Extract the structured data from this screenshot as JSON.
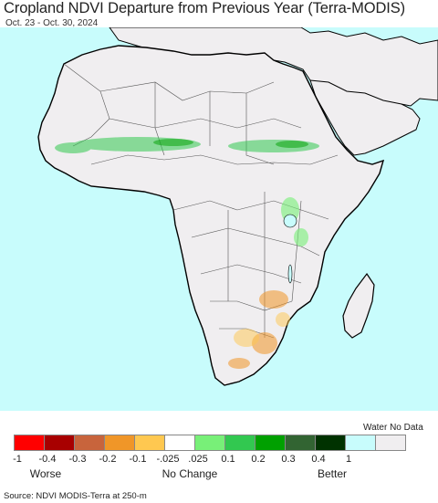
{
  "title": "Cropland NDVI Departure from Previous Year (Terra-MODIS)",
  "subtitle": "Oct. 23 - Oct. 30, 2024",
  "colors": {
    "ocean": "#c8fcfc",
    "land": "#f0eef0",
    "border": "#333333",
    "coast": "#000000"
  },
  "legend": {
    "colors": [
      "#ff0000",
      "#a80000",
      "#c8643c",
      "#f09628",
      "#ffc850",
      "#ffffff",
      "#78f078",
      "#32c850",
      "#00a000",
      "#326432",
      "#003200",
      "#c8fcfc",
      "#f0eef0"
    ],
    "ticks": [
      "-1",
      "-0.4",
      "-0.3",
      "-0.2",
      "-0.1",
      "-.025",
      ".025",
      "0.1",
      "0.2",
      "0.3",
      "0.4",
      "1"
    ],
    "water_label": "Water No Data",
    "worse": "Worse",
    "no_change": "No Change",
    "better": "Better"
  },
  "source": "Source: NDVI MODIS-Terra at 250-m"
}
